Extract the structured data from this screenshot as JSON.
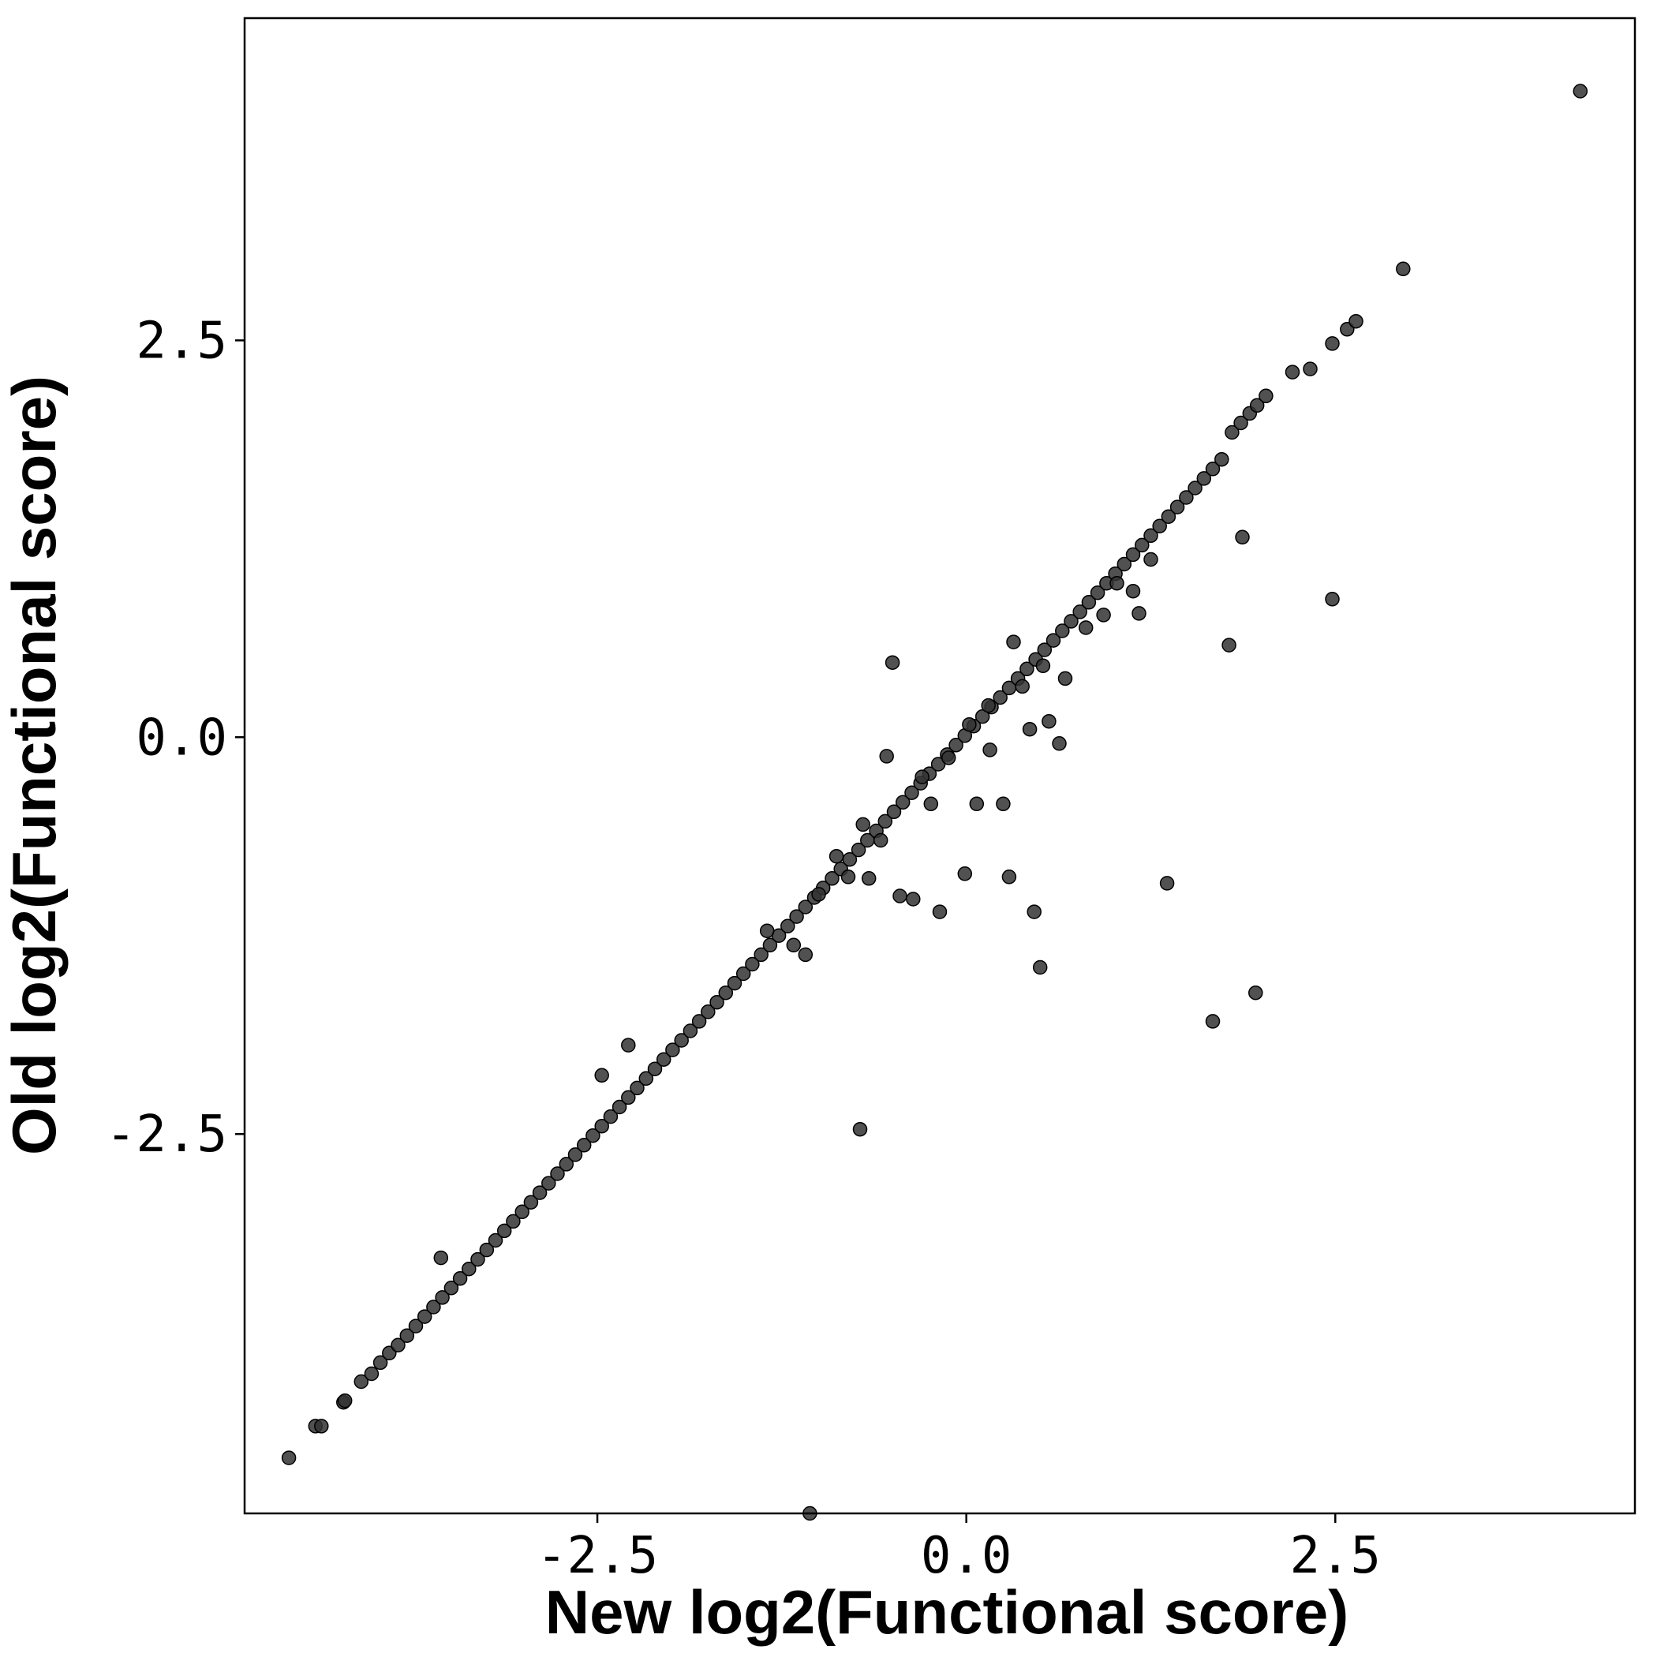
{
  "chart_data": {
    "type": "scatter",
    "title": "",
    "xlabel": "New log2(Functional score)",
    "ylabel": "Old log2(Functional score)",
    "xlim": [
      -4.89,
      4.53
    ],
    "ylim": [
      -4.89,
      4.53
    ],
    "x_ticks": [
      -2.5,
      0.0,
      2.5
    ],
    "y_ticks": [
      -2.5,
      0.0,
      2.5
    ],
    "x_tick_labels": [
      "-2.5",
      "0.0",
      "2.5"
    ],
    "y_tick_labels": [
      "-2.5",
      "0.0",
      "2.5"
    ],
    "grid": false,
    "legend": "none",
    "point_color": "#333333",
    "point_opacity": 0.85,
    "series": [
      {
        "diagonal_points": [
          [
            -4.59,
            -4.54
          ],
          [
            -4.41,
            -4.34
          ],
          [
            -4.37,
            -4.34
          ],
          [
            -4.22,
            -4.19
          ],
          [
            -4.21,
            -4.18
          ],
          [
            -4.1,
            -4.06
          ],
          [
            -4.03,
            -4.01
          ],
          [
            -3.97,
            -3.94
          ],
          [
            -3.91,
            -3.88
          ],
          [
            -3.85,
            -3.83
          ],
          [
            -3.79,
            -3.77
          ],
          [
            -3.73,
            -3.71
          ],
          [
            -3.67,
            -3.65
          ],
          [
            -3.61,
            -3.59
          ],
          [
            -3.55,
            -3.53
          ],
          [
            -3.49,
            -3.47
          ],
          [
            -3.43,
            -3.41
          ],
          [
            -3.37,
            -3.35
          ],
          [
            -3.31,
            -3.29
          ],
          [
            -3.25,
            -3.23
          ],
          [
            -3.19,
            -3.17
          ],
          [
            -3.13,
            -3.11
          ],
          [
            -3.07,
            -3.05
          ],
          [
            -3.01,
            -2.99
          ],
          [
            -2.95,
            -2.93
          ],
          [
            -2.89,
            -2.87
          ],
          [
            -2.83,
            -2.81
          ],
          [
            -2.77,
            -2.75
          ],
          [
            -2.71,
            -2.69
          ],
          [
            -2.65,
            -2.63
          ],
          [
            -2.59,
            -2.57
          ],
          [
            -2.53,
            -2.51
          ],
          [
            -2.47,
            -2.45
          ],
          [
            -2.41,
            -2.39
          ],
          [
            -2.35,
            -2.33
          ],
          [
            -2.29,
            -2.27
          ],
          [
            -2.23,
            -2.21
          ],
          [
            -2.17,
            -2.15
          ],
          [
            -2.11,
            -2.09
          ],
          [
            -2.05,
            -2.03
          ],
          [
            -1.99,
            -1.97
          ],
          [
            -1.93,
            -1.91
          ],
          [
            -1.87,
            -1.85
          ],
          [
            -1.81,
            -1.79
          ],
          [
            -1.75,
            -1.73
          ],
          [
            -1.69,
            -1.67
          ],
          [
            -1.63,
            -1.61
          ],
          [
            -1.57,
            -1.55
          ],
          [
            -1.51,
            -1.49
          ],
          [
            -1.45,
            -1.43
          ],
          [
            -1.39,
            -1.37
          ],
          [
            -1.33,
            -1.31
          ],
          [
            -1.27,
            -1.25
          ],
          [
            -1.21,
            -1.19
          ],
          [
            -1.15,
            -1.13
          ],
          [
            -1.09,
            -1.07
          ],
          [
            -1.03,
            -1.01
          ],
          [
            -0.97,
            -0.95
          ],
          [
            -0.91,
            -0.89
          ],
          [
            -0.85,
            -0.83
          ],
          [
            -0.79,
            -0.77
          ],
          [
            -0.73,
            -0.71
          ],
          [
            -0.67,
            -0.65
          ],
          [
            -0.61,
            -0.59
          ],
          [
            -0.55,
            -0.53
          ],
          [
            -0.49,
            -0.47
          ],
          [
            -0.43,
            -0.41
          ],
          [
            -0.37,
            -0.35
          ],
          [
            -0.31,
            -0.29
          ],
          [
            -0.25,
            -0.23
          ],
          [
            -0.19,
            -0.17
          ],
          [
            -0.13,
            -0.11
          ],
          [
            -0.07,
            -0.05
          ],
          [
            -0.01,
            0.01
          ],
          [
            0.05,
            0.07
          ],
          [
            0.11,
            0.13
          ],
          [
            0.17,
            0.19
          ],
          [
            0.23,
            0.25
          ],
          [
            0.29,
            0.31
          ],
          [
            0.35,
            0.37
          ],
          [
            0.41,
            0.43
          ],
          [
            0.47,
            0.49
          ],
          [
            0.53,
            0.55
          ],
          [
            0.59,
            0.61
          ],
          [
            0.65,
            0.67
          ],
          [
            0.71,
            0.73
          ],
          [
            0.77,
            0.79
          ],
          [
            0.83,
            0.85
          ],
          [
            0.89,
            0.91
          ],
          [
            0.95,
            0.97
          ],
          [
            1.01,
            1.03
          ],
          [
            1.07,
            1.09
          ],
          [
            1.13,
            1.15
          ],
          [
            1.19,
            1.21
          ],
          [
            1.25,
            1.27
          ],
          [
            1.31,
            1.33
          ],
          [
            1.37,
            1.39
          ],
          [
            1.43,
            1.45
          ],
          [
            1.49,
            1.51
          ],
          [
            1.55,
            1.57
          ],
          [
            1.61,
            1.63
          ],
          [
            1.67,
            1.69
          ],
          [
            1.73,
            1.75
          ],
          [
            1.8,
            1.92
          ],
          [
            1.86,
            1.98
          ],
          [
            1.92,
            2.04
          ],
          [
            1.97,
            2.09
          ],
          [
            2.03,
            2.15
          ],
          [
            2.21,
            2.3
          ],
          [
            2.33,
            2.32
          ],
          [
            2.48,
            2.48
          ],
          [
            2.58,
            2.57
          ],
          [
            2.64,
            2.62
          ],
          [
            2.96,
            2.95
          ],
          [
            4.16,
            4.07
          ]
        ],
        "off_diagonal_points": [
          [
            -3.56,
            -3.28
          ],
          [
            -2.47,
            -2.13
          ],
          [
            -2.29,
            -1.94
          ],
          [
            -1.35,
            -1.22
          ],
          [
            -1.17,
            -1.31
          ],
          [
            -1.09,
            -1.37
          ],
          [
            -1.0,
            -0.99
          ],
          [
            -0.8,
            -0.88
          ],
          [
            -0.66,
            -0.89
          ],
          [
            -0.58,
            -0.65
          ],
          [
            -0.54,
            -0.12
          ],
          [
            -0.5,
            0.47
          ],
          [
            -0.45,
            -1.0
          ],
          [
            -0.36,
            -1.02
          ],
          [
            -0.24,
            -0.42
          ],
          [
            -0.18,
            -1.1
          ],
          [
            -0.12,
            -0.13
          ],
          [
            -0.01,
            -0.86
          ],
          [
            0.07,
            -0.42
          ],
          [
            0.16,
            -0.08
          ],
          [
            0.25,
            -0.42
          ],
          [
            0.29,
            -0.88
          ],
          [
            0.32,
            0.6
          ],
          [
            0.43,
            0.05
          ],
          [
            0.46,
            -1.1
          ],
          [
            0.5,
            -1.45
          ],
          [
            0.56,
            0.1
          ],
          [
            0.63,
            -0.04
          ],
          [
            0.67,
            0.37
          ],
          [
            0.93,
            0.77
          ],
          [
            1.13,
            0.92
          ],
          [
            1.17,
            0.78
          ],
          [
            1.36,
            -0.92
          ],
          [
            1.78,
            0.58
          ],
          [
            1.87,
            1.26
          ],
          [
            2.48,
            0.87
          ],
          [
            1.67,
            -1.79
          ],
          [
            1.96,
            -1.61
          ],
          [
            -0.72,
            -2.47
          ],
          [
            -1.06,
            -4.89
          ],
          [
            -0.88,
            -0.75
          ],
          [
            -0.7,
            -0.55
          ],
          [
            -0.3,
            -0.25
          ],
          [
            0.02,
            0.08
          ],
          [
            0.15,
            0.2
          ],
          [
            0.38,
            0.32
          ],
          [
            0.52,
            0.45
          ],
          [
            0.81,
            0.69
          ],
          [
            1.02,
            0.97
          ],
          [
            1.25,
            1.12
          ]
        ]
      }
    ]
  }
}
